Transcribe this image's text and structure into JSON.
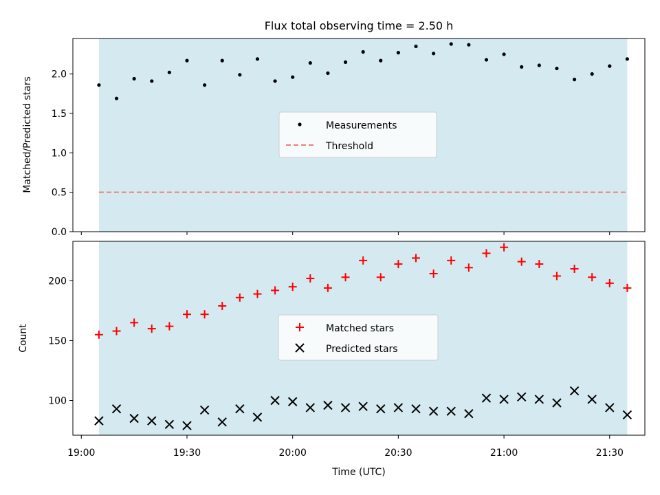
{
  "chart_data": [
    {
      "type": "scatter",
      "title": "Flux total observing time = 2.50 h",
      "xlabel": "",
      "ylabel": "Matched/Predicted stars",
      "ylim": [
        0,
        2.45
      ],
      "yticks": [
        "0.0",
        "0.5",
        "1.0",
        "1.5",
        "2.0"
      ],
      "ytick_values": [
        0,
        0.5,
        1.0,
        1.5,
        2.0
      ],
      "shaded_span": {
        "start": "19:05",
        "end": "21:35",
        "color": "#d4eaf0"
      },
      "threshold": 0.5,
      "legend": {
        "position": "center",
        "entries": [
          "Measurements",
          "Threshold"
        ]
      },
      "series": [
        {
          "name": "Measurements",
          "color": "#000000",
          "marker": "dot",
          "x": [
            "19:05",
            "19:10",
            "19:15",
            "19:20",
            "19:25",
            "19:30",
            "19:35",
            "19:40",
            "19:45",
            "19:50",
            "19:55",
            "20:00",
            "20:05",
            "20:10",
            "20:15",
            "20:20",
            "20:25",
            "20:30",
            "20:35",
            "20:40",
            "20:45",
            "20:50",
            "20:55",
            "21:00",
            "21:05",
            "21:10",
            "21:15",
            "21:20",
            "21:25",
            "21:30",
            "21:35"
          ],
          "values": [
            1.86,
            1.69,
            1.94,
            1.91,
            2.02,
            2.17,
            1.86,
            2.17,
            1.99,
            2.19,
            1.91,
            1.96,
            2.14,
            2.01,
            2.15,
            2.28,
            2.17,
            2.27,
            2.35,
            2.26,
            2.38,
            2.37,
            2.18,
            2.25,
            2.09,
            2.11,
            2.07,
            1.93,
            2.0,
            2.1,
            2.19
          ]
        },
        {
          "name": "Threshold",
          "color": "#f07c7c",
          "style": "dashed",
          "value": 0.5
        }
      ]
    },
    {
      "type": "scatter",
      "title": "",
      "xlabel": "Time (UTC)",
      "ylabel": "Count",
      "ylim": [
        71,
        233
      ],
      "yticks": [
        "100",
        "150",
        "200"
      ],
      "ytick_values": [
        100,
        150,
        200
      ],
      "xticks": [
        "19:00",
        "19:30",
        "20:00",
        "20:30",
        "21:00",
        "21:30"
      ],
      "xrange": [
        "19:00",
        "21:40"
      ],
      "shaded_span": {
        "start": "19:05",
        "end": "21:35",
        "color": "#d4eaf0"
      },
      "legend": {
        "position": "center",
        "entries": [
          "Matched stars",
          "Predicted stars"
        ]
      },
      "series": [
        {
          "name": "Matched stars",
          "color": "#ff0000",
          "marker": "plus",
          "x": [
            "19:05",
            "19:10",
            "19:15",
            "19:20",
            "19:25",
            "19:30",
            "19:35",
            "19:40",
            "19:45",
            "19:50",
            "19:55",
            "20:00",
            "20:05",
            "20:10",
            "20:15",
            "20:20",
            "20:25",
            "20:30",
            "20:35",
            "20:40",
            "20:45",
            "20:50",
            "20:55",
            "21:00",
            "21:05",
            "21:10",
            "21:15",
            "21:20",
            "21:25",
            "21:30",
            "21:35"
          ],
          "values": [
            155,
            158,
            165,
            160,
            162,
            172,
            172,
            179,
            186,
            189,
            192,
            195,
            202,
            194,
            203,
            217,
            203,
            214,
            219,
            206,
            217,
            211,
            223,
            228,
            216,
            214,
            204,
            210,
            203,
            198,
            194
          ]
        },
        {
          "name": "Predicted stars",
          "color": "#000000",
          "marker": "x",
          "x": [
            "19:05",
            "19:10",
            "19:15",
            "19:20",
            "19:25",
            "19:30",
            "19:35",
            "19:40",
            "19:45",
            "19:50",
            "19:55",
            "20:00",
            "20:05",
            "20:10",
            "20:15",
            "20:20",
            "20:25",
            "20:30",
            "20:35",
            "20:40",
            "20:45",
            "20:50",
            "20:55",
            "21:00",
            "21:05",
            "21:10",
            "21:15",
            "21:20",
            "21:25",
            "21:30",
            "21:35"
          ],
          "values": [
            83,
            93,
            85,
            83,
            80,
            79,
            92,
            82,
            93,
            86,
            100,
            99,
            94,
            96,
            94,
            95,
            93,
            94,
            93,
            91,
            91,
            89,
            102,
            101,
            103,
            101,
            98,
            108,
            101,
            94,
            88
          ]
        }
      ]
    }
  ]
}
